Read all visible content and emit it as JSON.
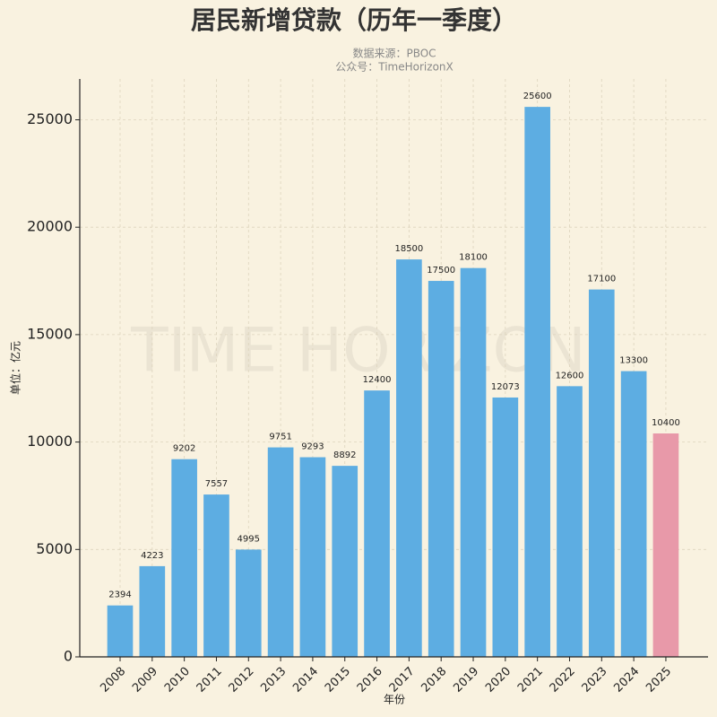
{
  "chart_data": {
    "type": "bar",
    "title": "居民新增贷款（历年一季度）",
    "subtitle": [
      "数据来源：PBOC",
      "公众号：TimeHorizonX"
    ],
    "watermark": "TIME HORIZON",
    "x_label": "年份",
    "y_label": "单位：亿元",
    "categories": [
      "2008",
      "2009",
      "2010",
      "2011",
      "2012",
      "2013",
      "2014",
      "2015",
      "2016",
      "2017",
      "2018",
      "2019",
      "2020",
      "2021",
      "2022",
      "2023",
      "2024",
      "2025"
    ],
    "values": [
      2394,
      4223,
      9202,
      7557,
      4995,
      9751,
      9293,
      8892,
      12400,
      18500,
      17500,
      18100,
      12073,
      25600,
      12600,
      17100,
      13300,
      10400
    ],
    "colors": [
      "#5dade2",
      "#5dade2",
      "#5dade2",
      "#5dade2",
      "#5dade2",
      "#5dade2",
      "#5dade2",
      "#5dade2",
      "#5dade2",
      "#5dade2",
      "#5dade2",
      "#5dade2",
      "#5dade2",
      "#5dade2",
      "#5dade2",
      "#5dade2",
      "#5dade2",
      "#e899a9"
    ],
    "ylim": [
      0,
      26900
    ],
    "yticks": [
      0,
      5000,
      10000,
      15000,
      20000,
      25000
    ],
    "grid": true
  }
}
